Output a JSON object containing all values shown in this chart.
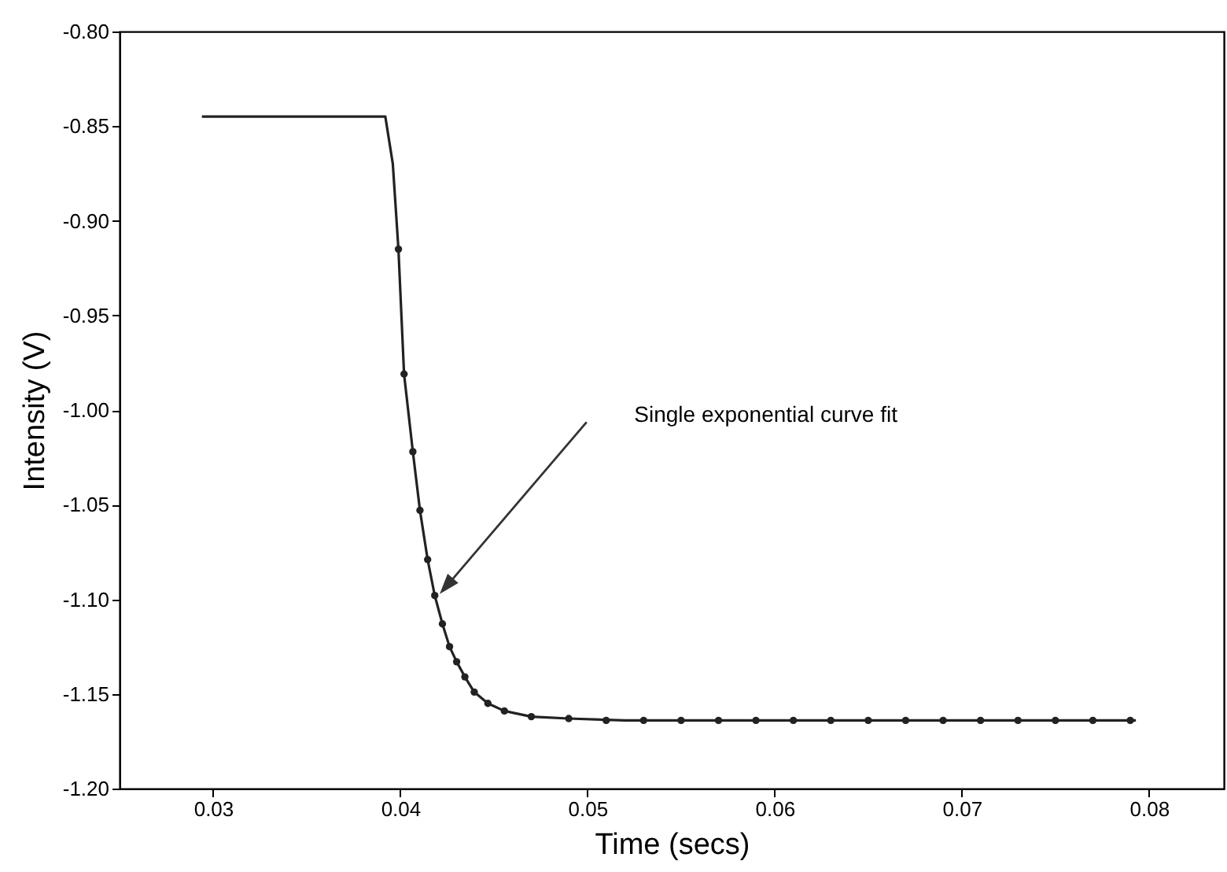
{
  "chart_data": {
    "type": "line",
    "xlabel": "Time (secs)",
    "ylabel": "Intensity (V)",
    "xlim": [
      0.025,
      0.084
    ],
    "ylim": [
      -1.2,
      -0.8
    ],
    "xticks": [
      0.03,
      0.04,
      0.05,
      0.06,
      0.07,
      0.08
    ],
    "yticks": [
      {
        "value": -1.2,
        "label": "-1.20"
      },
      {
        "value": -1.15,
        "label": "-1.15"
      },
      {
        "value": -1.1,
        "label": "-1.10"
      },
      {
        "value": -1.05,
        "label": "-1.05"
      },
      {
        "value": -1.0,
        "label": "-1.00"
      },
      {
        "value": -0.95,
        "label": "-0.95"
      },
      {
        "value": -0.9,
        "label": "-0.90"
      },
      {
        "value": -0.85,
        "label": "-0.85"
      },
      {
        "value": -0.8,
        "label": "-0.80"
      }
    ],
    "grid": false,
    "series": [
      {
        "type": "line",
        "color": "#222222",
        "x": [
          0.0294,
          0.0392,
          0.0396,
          0.0399,
          0.0402,
          0.04067,
          0.04105,
          0.04146,
          0.04184,
          0.04225,
          0.04263,
          0.04301,
          0.04345,
          0.04395,
          0.04468,
          0.04556,
          0.047,
          0.049,
          0.052,
          0.06,
          0.07,
          0.0793
        ],
        "values": [
          -0.845,
          -0.845,
          -0.87,
          -0.915,
          -0.981,
          -1.022,
          -1.053,
          -1.079,
          -1.098,
          -1.113,
          -1.125,
          -1.133,
          -1.141,
          -1.149,
          -1.155,
          -1.159,
          -1.162,
          -1.163,
          -1.164,
          -1.164,
          -1.164,
          -1.164
        ]
      },
      {
        "type": "scatter",
        "color": "#222222",
        "marker": "circle",
        "x": [
          0.0399,
          0.0402,
          0.04067,
          0.04105,
          0.04146,
          0.04184,
          0.04225,
          0.04263,
          0.04301,
          0.04345,
          0.04395,
          0.04468,
          0.04556,
          0.047,
          0.049,
          0.051,
          0.053,
          0.055,
          0.057,
          0.059,
          0.061,
          0.063,
          0.065,
          0.067,
          0.069,
          0.071,
          0.073,
          0.075,
          0.077,
          0.079
        ],
        "values": [
          -0.915,
          -0.981,
          -1.022,
          -1.053,
          -1.079,
          -1.098,
          -1.113,
          -1.125,
          -1.133,
          -1.141,
          -1.149,
          -1.155,
          -1.159,
          -1.162,
          -1.163,
          -1.164,
          -1.164,
          -1.164,
          -1.164,
          -1.164,
          -1.164,
          -1.164,
          -1.164,
          -1.164,
          -1.164,
          -1.164,
          -1.164,
          -1.164,
          -1.164,
          -1.164
        ]
      }
    ],
    "annotations": [
      "Single exponential curve fit"
    ]
  }
}
